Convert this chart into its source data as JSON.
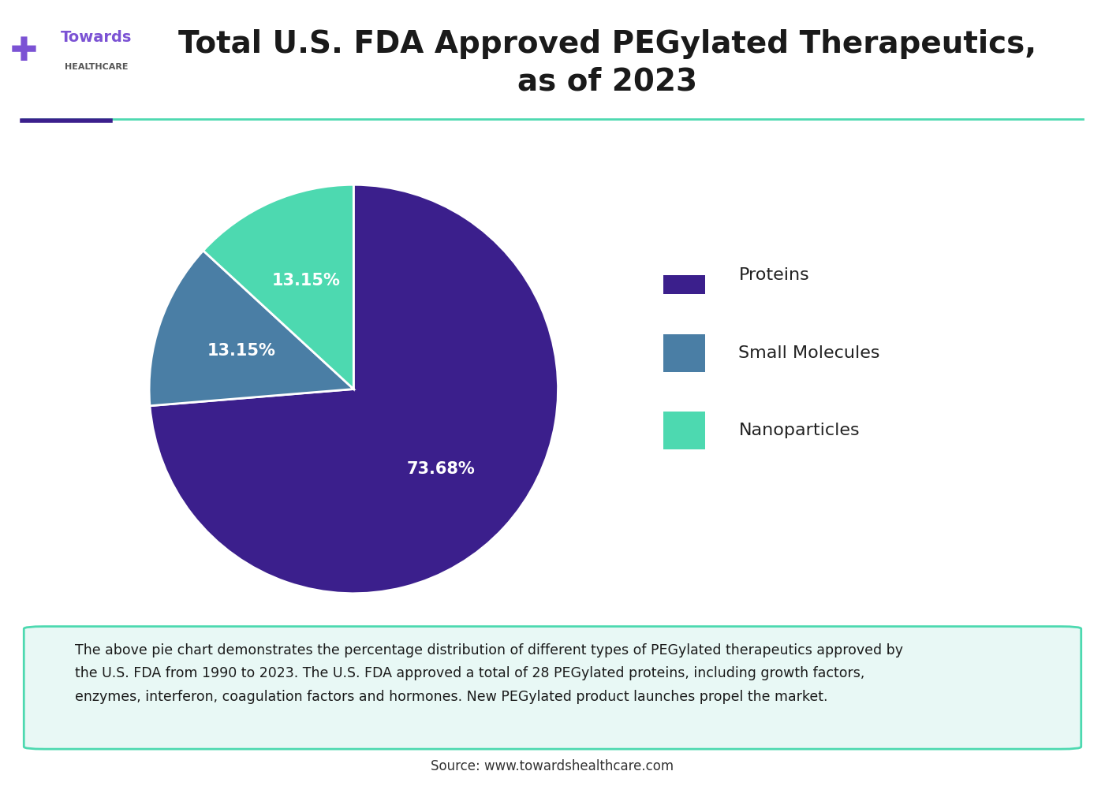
{
  "title": "Total U.S. FDA Approved PEGylated Therapeutics,\nas of 2023",
  "title_fontsize": 28,
  "slices": [
    73.68,
    13.15,
    13.15
  ],
  "labels": [
    "Proteins",
    "Small Molecules",
    "Nanoparticles"
  ],
  "pct_labels": [
    "73.68%",
    "13.15%",
    "13.15%"
  ],
  "colors": [
    "#3B1F8C",
    "#4A7EA5",
    "#4DD9B0"
  ],
  "legend_labels": [
    "Proteins",
    "Small Molecules",
    "Nanoparticles"
  ],
  "footnote_text": "The above pie chart demonstrates the percentage distribution of different types of PEGylated therapeutics approved by\nthe U.S. FDA from 1990 to 2023. The U.S. FDA approved a total of 28 PEGylated proteins, including growth factors,\nenzymes, interferon, coagulation factors and hormones. New PEGylated product launches propel the market.",
  "source_text": "Source: www.towardshealthcare.com",
  "footnote_bg_color": "#E8F8F5",
  "footnote_border_color": "#4DD9B0",
  "header_line_color1": "#3B1F8C",
  "header_line_color2": "#4DD9B0",
  "background_color": "#FFFFFF",
  "start_angle": 90
}
